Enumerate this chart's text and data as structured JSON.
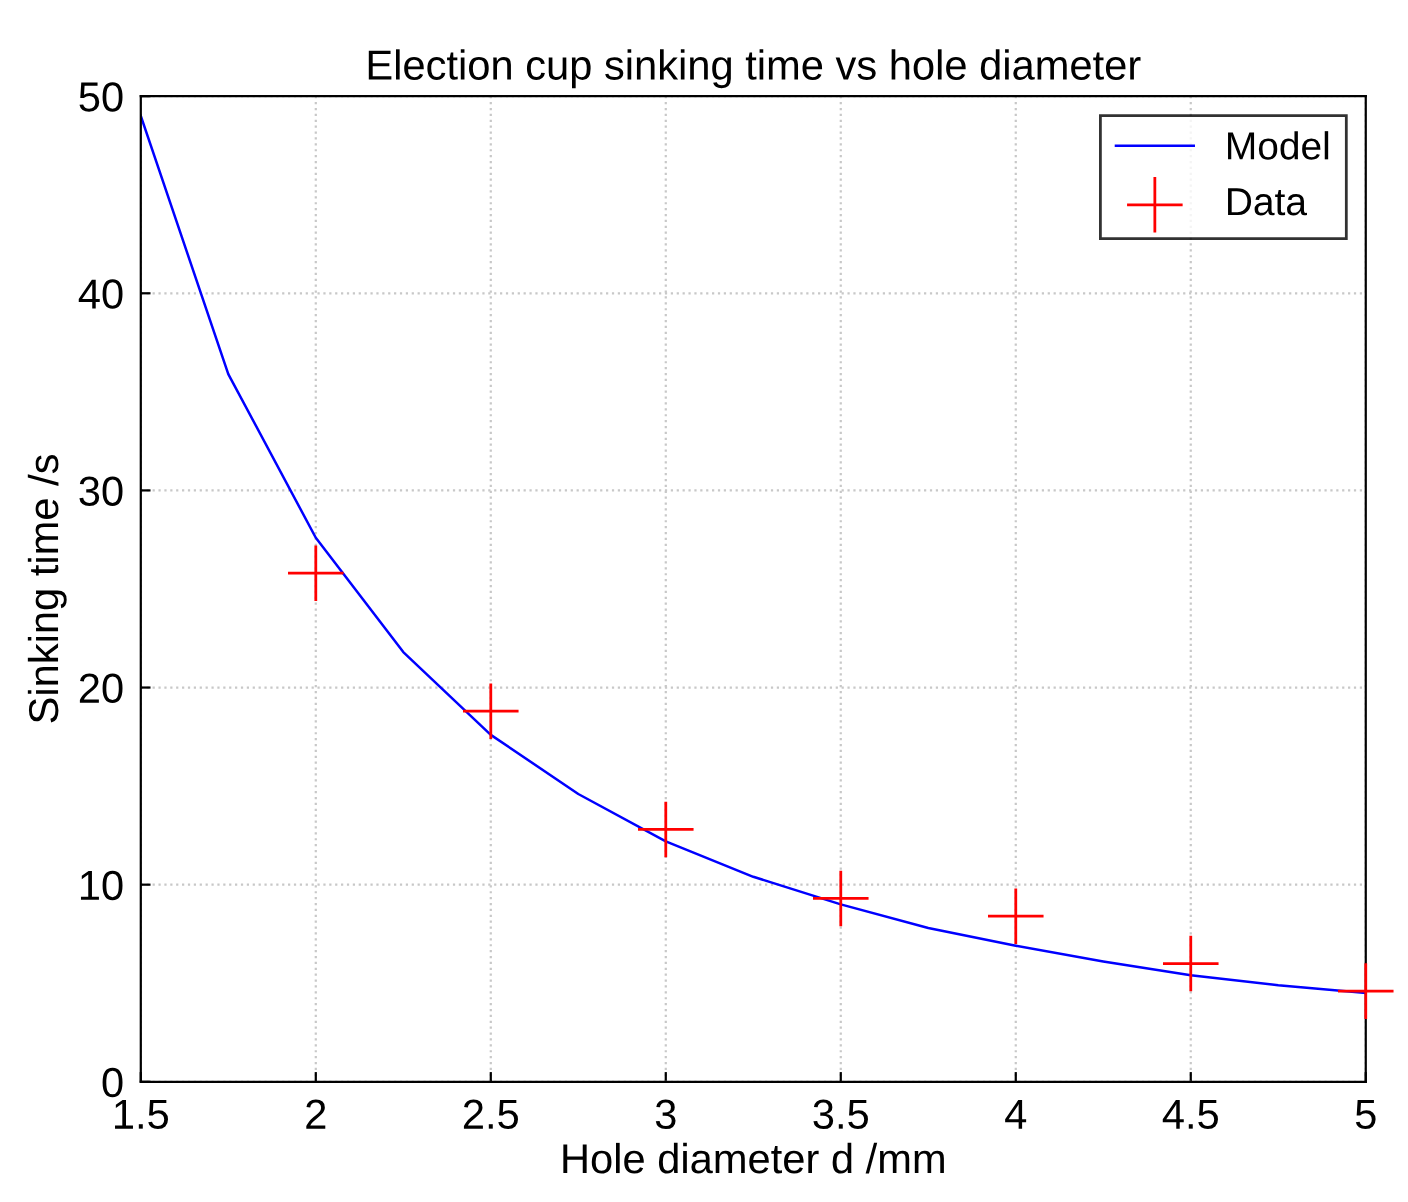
{
  "chart_data": {
    "type": "line",
    "title": "Election cup sinking time vs hole diameter",
    "xlabel": "Hole diameter d /mm",
    "ylabel": "Sinking time /s",
    "series": [
      {
        "name": "Model",
        "color": "#0000ff",
        "marker": "none",
        "x": [
          1.5,
          1.75,
          2,
          2.25,
          2.5,
          2.75,
          3,
          3.25,
          3.5,
          3.75,
          4,
          4.25,
          4.5,
          4.75,
          5
        ],
        "values": [
          49,
          35.9,
          27.6,
          21.8,
          17.6,
          14.6,
          12.2,
          10.4,
          9.0,
          7.8,
          6.9,
          6.1,
          5.4,
          4.9,
          4.5
        ]
      },
      {
        "name": "Data",
        "type": "scatter",
        "color": "#ff0000",
        "marker": "cross",
        "x": [
          2,
          2.5,
          3,
          3.5,
          4,
          4.5,
          5
        ],
        "values": [
          25.8,
          18.8,
          12.8,
          9.3,
          8.4,
          6.0,
          4.6
        ]
      }
    ],
    "xlim": [
      1.5,
      5
    ],
    "xticks": [
      1.5,
      2,
      2.5,
      3,
      3.5,
      4,
      4.5,
      5
    ],
    "ylim": [
      0,
      50
    ],
    "yticks": [
      0,
      10,
      20,
      30,
      40,
      50
    ],
    "grid": true,
    "legend": "top right"
  }
}
